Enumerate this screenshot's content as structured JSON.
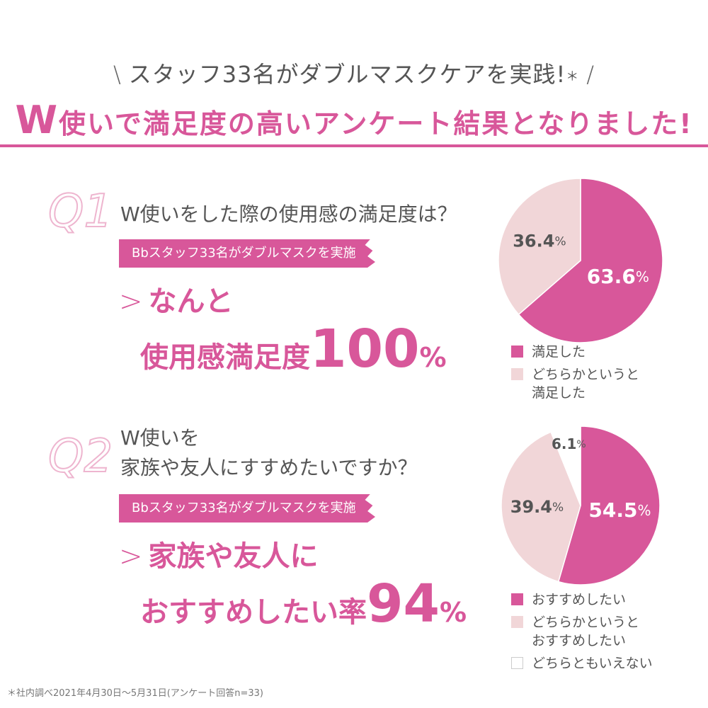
{
  "header": {
    "subtitle": "スタッフ33名がダブルマスクケアを実践!",
    "subtitle_mark": "＊",
    "title_w": "W",
    "title_rest": "使いで満足度の高いアンケート結果となりました",
    "title_bang": "!"
  },
  "q1": {
    "label": "Q1",
    "question": "W使いをした際の使用感の満足度は？",
    "banner": "Bbスタッフ33名がダブルマスクを実施",
    "result_line1": "なんと",
    "result_line2": "使用感満足度",
    "result_value": "100",
    "result_unit": "%",
    "legend": [
      "満足した",
      "どちらかというと\n満足した"
    ]
  },
  "q2": {
    "label": "Q2",
    "question_line1": "W使いを",
    "question_line2": "家族や友人にすすめたいですか？",
    "banner": "Bbスタッフ33名がダブルマスクを実施",
    "result_line1": "家族や友人に",
    "result_line2": "おすすめしたい率",
    "result_value": "94",
    "result_unit": "%",
    "legend": [
      "おすすめしたい",
      "どちらかというと\nおすすめしたい",
      "どちらともいえない"
    ]
  },
  "footnote": "＊社内調べ2021年4月30日〜5月31日(アンケート回答n=33)",
  "colors": {
    "primary": "#d8579a",
    "light": "#f1d6d8",
    "white": "#ffffff",
    "text": "#555555"
  },
  "chart_data": [
    {
      "type": "pie",
      "categories": [
        "満足した",
        "どちらかというと満足した"
      ],
      "values": [
        63.6,
        36.4
      ],
      "labels": [
        "63.6",
        "36.4"
      ],
      "unit": "%",
      "colors": [
        "#d8579a",
        "#f1d6d8"
      ]
    },
    {
      "type": "pie",
      "categories": [
        "おすすめしたい",
        "どちらかというとおすすめしたい",
        "どちらともいえない"
      ],
      "values": [
        54.5,
        39.4,
        6.1
      ],
      "labels": [
        "54.5",
        "39.4",
        "6.1"
      ],
      "unit": "%",
      "colors": [
        "#d8579a",
        "#f1d6d8",
        "#ffffff"
      ]
    }
  ]
}
